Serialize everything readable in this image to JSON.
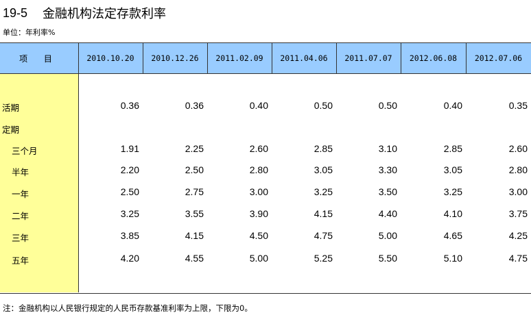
{
  "title": {
    "number": "19-5",
    "text": "金融机构法定存款利率"
  },
  "unit_text": "单位：年利率%",
  "table": {
    "corner_label": "项 目",
    "columns": [
      "2010.10.20",
      "2010.12.26",
      "2011.02.09",
      "2011.04.06",
      "2011.07.07",
      "2012.06.08",
      "2012.07.06"
    ],
    "rows": [
      {
        "label": "活期",
        "values": [
          "0.36",
          "0.36",
          "0.40",
          "0.50",
          "0.50",
          "0.40",
          "0.35"
        ]
      },
      {
        "label": "定期",
        "values": [
          "",
          "",
          "",
          "",
          "",
          "",
          ""
        ]
      },
      {
        "label": "三个月",
        "values": [
          "1.91",
          "2.25",
          "2.60",
          "2.85",
          "3.10",
          "2.85",
          "2.60"
        ]
      },
      {
        "label": "半年",
        "values": [
          "2.20",
          "2.50",
          "2.80",
          "3.05",
          "3.30",
          "3.05",
          "2.80"
        ]
      },
      {
        "label": "一年",
        "values": [
          "2.50",
          "2.75",
          "3.00",
          "3.25",
          "3.50",
          "3.25",
          "3.00"
        ]
      },
      {
        "label": "二年",
        "values": [
          "3.25",
          "3.55",
          "3.90",
          "4.15",
          "4.40",
          "4.10",
          "3.75"
        ]
      },
      {
        "label": "三年",
        "values": [
          "3.85",
          "4.15",
          "4.50",
          "4.75",
          "5.00",
          "4.65",
          "4.25"
        ]
      },
      {
        "label": "五年",
        "values": [
          "4.20",
          "4.55",
          "5.00",
          "5.25",
          "5.50",
          "5.10",
          "4.75"
        ]
      }
    ]
  },
  "note": "注：金融机构以人民银行规定的人民币存款基准利率为上限，下限为0。",
  "colors": {
    "header_bg": "#99ccff",
    "label_col_bg": "#ffff99",
    "line": "#333333"
  }
}
